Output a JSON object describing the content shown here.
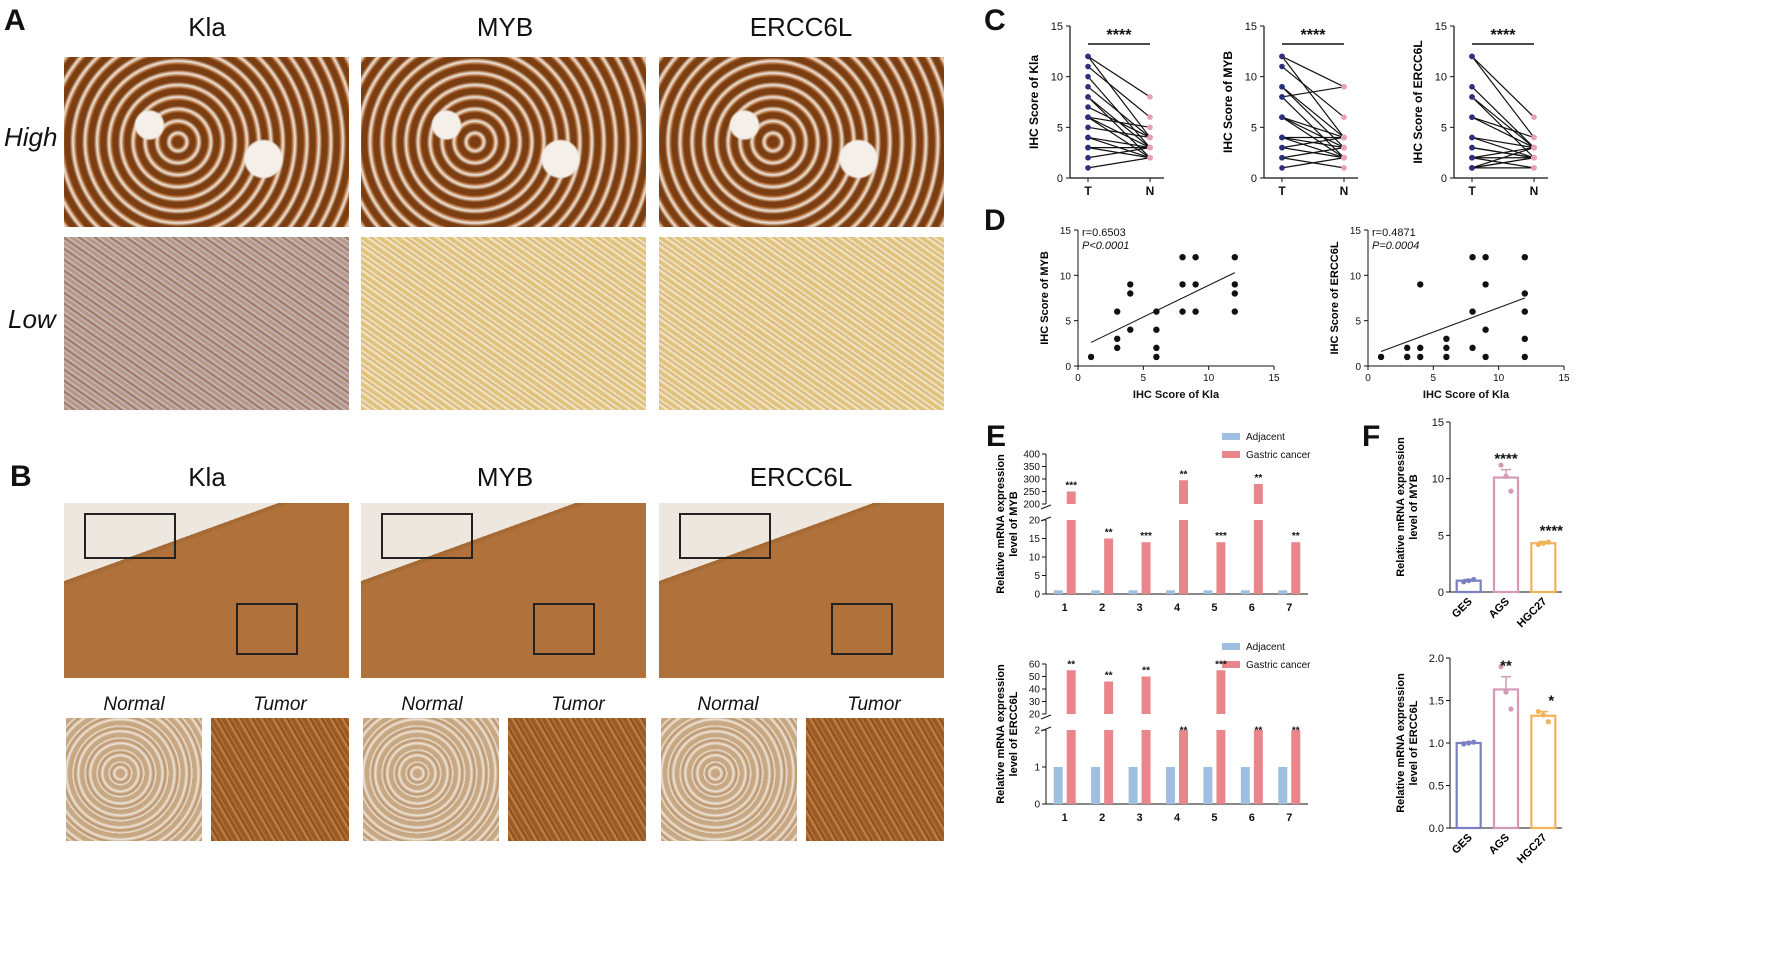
{
  "panels": {
    "A": {
      "letter": "A",
      "columns": [
        "Kla",
        "MYB",
        "ERCC6L"
      ],
      "rows": [
        "High",
        "Low"
      ]
    },
    "B": {
      "letter": "B",
      "columns": [
        "Kla",
        "MYB",
        "ERCC6L"
      ],
      "zoom_labels": [
        "Normal",
        "Tumor"
      ]
    },
    "C": {
      "letter": "C"
    },
    "D": {
      "letter": "D"
    },
    "E": {
      "letter": "E"
    },
    "F": {
      "letter": "F"
    }
  },
  "colors": {
    "dab_brown": "#8a4a1a",
    "dab_light": "#d9b36a",
    "tissue_blue": "#b8bfd6",
    "adjacent": "#9fbfe0",
    "cancer": "#e8868c",
    "ges": "#7b7fc4",
    "ags": "#d49ab8",
    "hgc27": "#f0b35a",
    "t_point": "#2c2f7a",
    "n_point": "#e8a0b4"
  },
  "chart_data": [
    {
      "id": "C1",
      "type": "line",
      "subtype": "paired",
      "ylabel": "IHC Score of Kla",
      "categories": [
        "T",
        "N"
      ],
      "ylim": [
        0,
        15
      ],
      "yticks": [
        0,
        5,
        10,
        15
      ],
      "significance": "****",
      "pairs": [
        [
          12,
          8
        ],
        [
          12,
          4
        ],
        [
          11,
          6
        ],
        [
          10,
          3
        ],
        [
          9,
          4
        ],
        [
          8,
          3
        ],
        [
          8,
          2
        ],
        [
          7,
          4
        ],
        [
          6,
          5
        ],
        [
          6,
          3
        ],
        [
          6,
          2
        ],
        [
          5,
          4
        ],
        [
          4,
          3
        ],
        [
          4,
          2
        ],
        [
          3,
          3
        ],
        [
          3,
          2
        ],
        [
          2,
          3
        ],
        [
          1,
          2
        ]
      ]
    },
    {
      "id": "C2",
      "type": "line",
      "subtype": "paired",
      "ylabel": "IHC Score of MYB",
      "categories": [
        "T",
        "N"
      ],
      "ylim": [
        0,
        15
      ],
      "yticks": [
        0,
        5,
        10,
        15
      ],
      "significance": "****",
      "pairs": [
        [
          12,
          9
        ],
        [
          12,
          4
        ],
        [
          11,
          6
        ],
        [
          9,
          3
        ],
        [
          9,
          4
        ],
        [
          8,
          2
        ],
        [
          8,
          9
        ],
        [
          6,
          4
        ],
        [
          6,
          3
        ],
        [
          6,
          2
        ],
        [
          4,
          4
        ],
        [
          4,
          3
        ],
        [
          4,
          2
        ],
        [
          3,
          2
        ],
        [
          3,
          4
        ],
        [
          2,
          3
        ],
        [
          2,
          1
        ],
        [
          1,
          2
        ]
      ]
    },
    {
      "id": "C3",
      "type": "line",
      "subtype": "paired",
      "ylabel": "IHC Score of ERCC6L",
      "categories": [
        "T",
        "N"
      ],
      "ylim": [
        0,
        15
      ],
      "yticks": [
        0,
        5,
        10,
        15
      ],
      "significance": "****",
      "pairs": [
        [
          12,
          6
        ],
        [
          12,
          4
        ],
        [
          9,
          3
        ],
        [
          8,
          2
        ],
        [
          8,
          3
        ],
        [
          6,
          4
        ],
        [
          6,
          3
        ],
        [
          4,
          2
        ],
        [
          4,
          3
        ],
        [
          3,
          2
        ],
        [
          3,
          2
        ],
        [
          2,
          3
        ],
        [
          2,
          2
        ],
        [
          2,
          1
        ],
        [
          1,
          2
        ],
        [
          1,
          3
        ],
        [
          1,
          1
        ],
        [
          1,
          2
        ]
      ]
    },
    {
      "id": "D1",
      "type": "scatter",
      "xlabel": "IHC Score of Kla",
      "ylabel": "IHC Score of MYB",
      "xlim": [
        0,
        15
      ],
      "ylim": [
        0,
        15
      ],
      "xticks": [
        0,
        5,
        10,
        15
      ],
      "yticks": [
        0,
        5,
        10,
        15
      ],
      "annotation": [
        "r=0.6503",
        "P<0.0001"
      ],
      "points": [
        [
          1,
          1
        ],
        [
          3,
          2
        ],
        [
          3,
          3
        ],
        [
          3,
          6
        ],
        [
          4,
          4
        ],
        [
          4,
          8
        ],
        [
          4,
          9
        ],
        [
          6,
          1
        ],
        [
          6,
          2
        ],
        [
          6,
          4
        ],
        [
          6,
          6
        ],
        [
          8,
          6
        ],
        [
          8,
          9
        ],
        [
          8,
          12
        ],
        [
          9,
          6
        ],
        [
          9,
          9
        ],
        [
          9,
          12
        ],
        [
          12,
          6
        ],
        [
          12,
          8
        ],
        [
          12,
          9
        ],
        [
          12,
          12
        ]
      ],
      "fit": [
        [
          1,
          2.6
        ],
        [
          12,
          10.3
        ]
      ]
    },
    {
      "id": "D2",
      "type": "scatter",
      "xlabel": "IHC Score of Kla",
      "ylabel": "IHC Score of ERCC6L",
      "xlim": [
        0,
        15
      ],
      "ylim": [
        0,
        15
      ],
      "xticks": [
        0,
        5,
        10,
        15
      ],
      "yticks": [
        0,
        5,
        10,
        15
      ],
      "annotation": [
        "r=0.4871",
        "P=0.0004"
      ],
      "points": [
        [
          1,
          1
        ],
        [
          3,
          1
        ],
        [
          3,
          2
        ],
        [
          4,
          1
        ],
        [
          4,
          2
        ],
        [
          4,
          9
        ],
        [
          6,
          1
        ],
        [
          6,
          2
        ],
        [
          6,
          3
        ],
        [
          8,
          2
        ],
        [
          8,
          6
        ],
        [
          8,
          12
        ],
        [
          9,
          1
        ],
        [
          9,
          4
        ],
        [
          9,
          9
        ],
        [
          9,
          12
        ],
        [
          12,
          1
        ],
        [
          12,
          3
        ],
        [
          12,
          6
        ],
        [
          12,
          8
        ],
        [
          12,
          12
        ]
      ],
      "fit": [
        [
          1,
          1.6
        ],
        [
          12,
          7.5
        ]
      ]
    },
    {
      "id": "E1",
      "type": "bar",
      "subtype": "broken-axis",
      "ylabel": [
        "Relative mRNA expression",
        "level of MYB"
      ],
      "categories": [
        "1",
        "2",
        "3",
        "4",
        "5",
        "6",
        "7"
      ],
      "series": [
        {
          "name": "Adjacent",
          "values": [
            1,
            1,
            1,
            1,
            1,
            1,
            1
          ]
        },
        {
          "name": "Gastric cancer",
          "values": [
            250,
            15,
            14,
            295,
            14,
            280,
            14
          ]
        }
      ],
      "lower_axis": {
        "range": [
          0,
          20
        ],
        "ticks": [
          0,
          5,
          10,
          15,
          20
        ]
      },
      "upper_axis": {
        "range": [
          200,
          400
        ],
        "ticks": [
          200,
          250,
          300,
          350,
          400
        ]
      },
      "significance": [
        "***",
        "**",
        "***",
        "**",
        "***",
        "**",
        "**"
      ],
      "legend_position": "top-right"
    },
    {
      "id": "E2",
      "type": "bar",
      "subtype": "broken-axis",
      "ylabel": [
        "Relative mRNA expression",
        "level of ERCC6L"
      ],
      "categories": [
        "1",
        "2",
        "3",
        "4",
        "5",
        "6",
        "7"
      ],
      "series": [
        {
          "name": "Adjacent",
          "values": [
            1,
            1,
            1,
            1,
            1,
            1,
            1
          ]
        },
        {
          "name": "Gastric cancer",
          "values": [
            55,
            46,
            50,
            2.2,
            55,
            2.2,
            2.2
          ]
        }
      ],
      "lower_axis": {
        "range": [
          0,
          2
        ],
        "ticks": [
          0,
          1,
          2
        ]
      },
      "upper_axis": {
        "range": [
          20,
          60
        ],
        "ticks": [
          20,
          30,
          40,
          50,
          60
        ]
      },
      "significance": [
        "**",
        "**",
        "**",
        "**",
        "***",
        "**",
        "**"
      ],
      "legend_position": "top-right"
    },
    {
      "id": "F1",
      "type": "bar",
      "ylabel": [
        "Relative mRNA expression",
        "level of MYB"
      ],
      "categories": [
        "GES",
        "AGS",
        "HGC27"
      ],
      "values": [
        1,
        10.1,
        4.3
      ],
      "errors": [
        0.1,
        0.7,
        0.15
      ],
      "dots": [
        [
          0.9,
          1.0,
          1.1
        ],
        [
          11.2,
          10.2,
          8.9
        ],
        [
          4.2,
          4.3,
          4.4
        ]
      ],
      "ylim": [
        0,
        15
      ],
      "yticks": [
        0,
        5,
        10,
        15
      ],
      "significance": [
        "",
        "****",
        "****"
      ]
    },
    {
      "id": "F2",
      "type": "bar",
      "ylabel": [
        "Relative mRNA expression",
        "level of ERCC6L"
      ],
      "categories": [
        "GES",
        "AGS",
        "HGC27"
      ],
      "values": [
        1.0,
        1.63,
        1.32
      ],
      "errors": [
        0.01,
        0.15,
        0.05
      ],
      "dots": [
        [
          0.99,
          1.0,
          1.01
        ],
        [
          1.9,
          1.6,
          1.4
        ],
        [
          1.37,
          1.33,
          1.25
        ]
      ],
      "ylim": [
        0,
        2.0
      ],
      "yticks": [
        "0.0",
        "0.5",
        "1.0",
        "1.5",
        "2.0"
      ],
      "significance": [
        "",
        "**",
        "*"
      ]
    }
  ]
}
